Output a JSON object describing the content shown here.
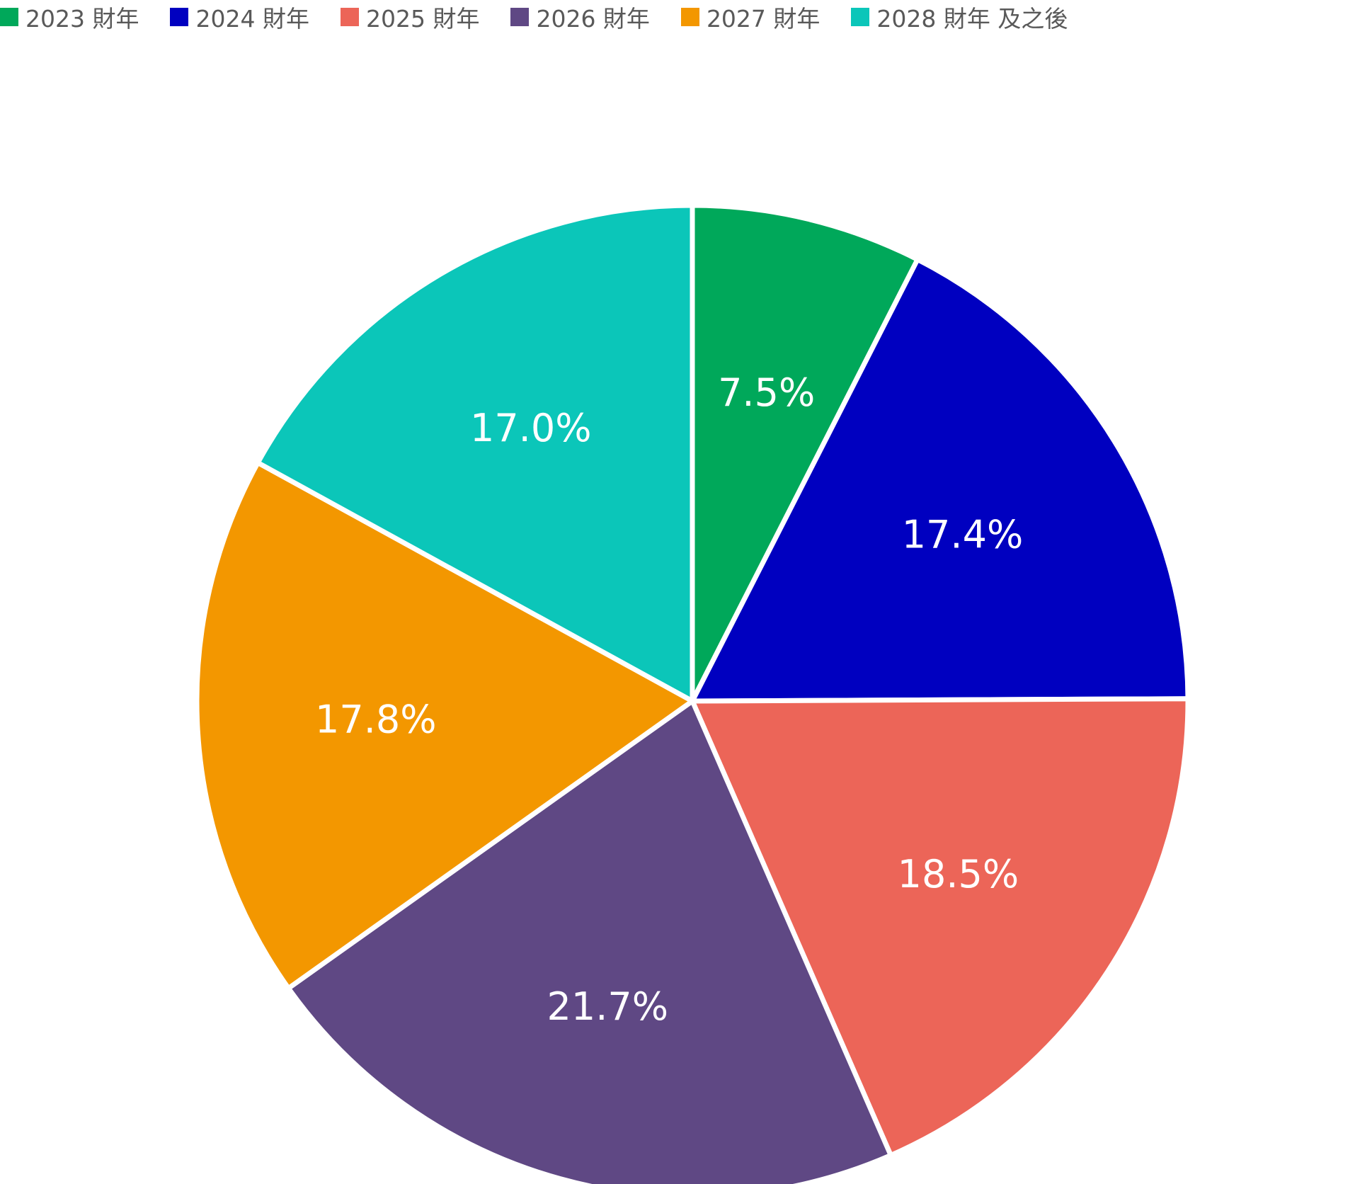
{
  "chart_data": {
    "type": "pie",
    "categories": [
      "2023 財年",
      "2024 財年",
      "2025 財年",
      "2026 財年",
      "2027 財年",
      "2028 財年 及之後"
    ],
    "values": [
      7.5,
      17.4,
      18.5,
      21.7,
      17.8,
      17.0
    ],
    "data_labels": [
      "7.5%",
      "17.4%",
      "18.5%",
      "21.7%",
      "17.8%",
      "17.0%"
    ],
    "colors": [
      "#00A85A",
      "#0000C0",
      "#EC6558",
      "#5F4884",
      "#F39700",
      "#0BC6B9"
    ],
    "legend_position": "top-left",
    "start_angle": "12 o'clock",
    "direction": "clockwise"
  }
}
